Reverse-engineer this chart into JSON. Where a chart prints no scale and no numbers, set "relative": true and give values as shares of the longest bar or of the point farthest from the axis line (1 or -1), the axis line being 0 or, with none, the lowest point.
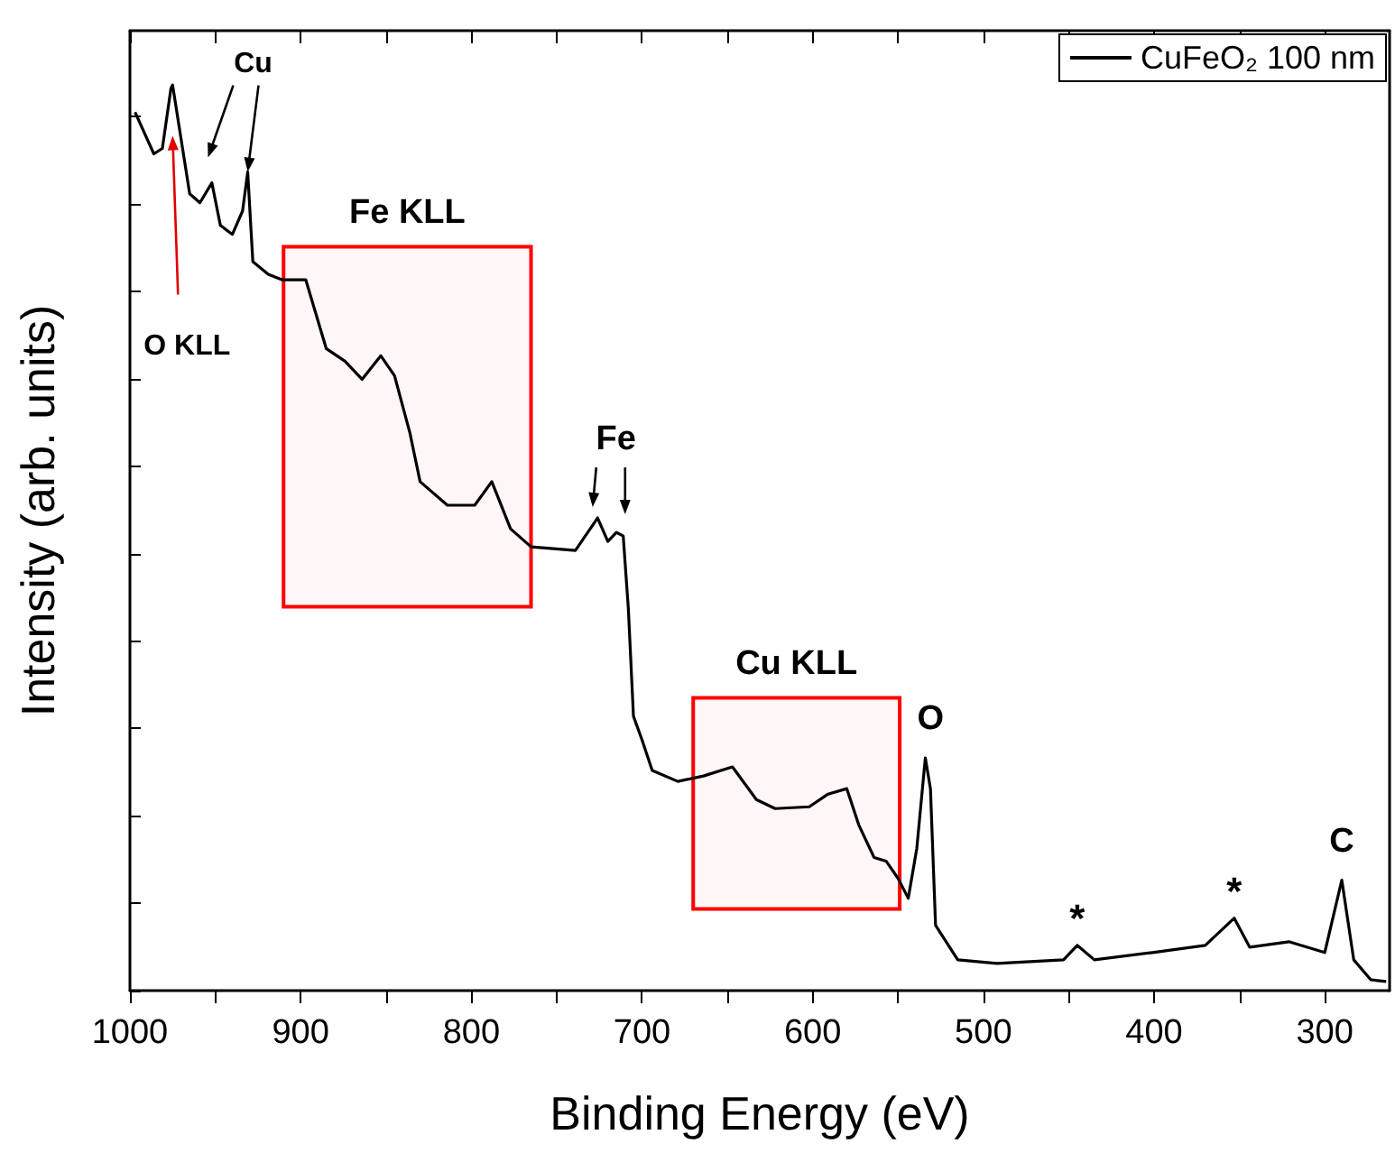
{
  "chart_data": {
    "type": "line",
    "xlabel": "Binding Energy (eV)",
    "ylabel": "Intensity (arb. units)",
    "relative": true,
    "tick_labels": "x",
    "legend": "top right",
    "grid": false,
    "marker": "none",
    "line_style": "solid",
    "xlim": [
      1000,
      262
    ],
    "xticks": [
      1000,
      900,
      800,
      700,
      600,
      500,
      400,
      300
    ],
    "series": [
      {
        "name": "CuFeO₂ 100 nm",
        "color": "#000000",
        "x": [
          997,
          986,
          981,
          976,
          975,
          970,
          965,
          959,
          952,
          947,
          940,
          934,
          931,
          928,
          919,
          911,
          897,
          885,
          874,
          864,
          853,
          845,
          836,
          830,
          814,
          798,
          788,
          777,
          765,
          739,
          726,
          720,
          715,
          711,
          708,
          705,
          700,
          694,
          679,
          664,
          647,
          633,
          622,
          602,
          591,
          580,
          573,
          564,
          557,
          550,
          544,
          539,
          534,
          531,
          528,
          515,
          492,
          453,
          445,
          435,
          401,
          370,
          353,
          344,
          321,
          300,
          290,
          283,
          273,
          264
        ],
        "values": [
          0.97,
          0.924,
          0.93,
          0.996,
          1.0,
          0.94,
          0.88,
          0.87,
          0.892,
          0.845,
          0.835,
          0.861,
          0.904,
          0.805,
          0.791,
          0.785,
          0.785,
          0.709,
          0.695,
          0.675,
          0.701,
          0.679,
          0.616,
          0.562,
          0.536,
          0.536,
          0.562,
          0.51,
          0.49,
          0.486,
          0.522,
          0.496,
          0.506,
          0.502,
          0.422,
          0.303,
          0.277,
          0.243,
          0.231,
          0.237,
          0.247,
          0.211,
          0.201,
          0.203,
          0.217,
          0.223,
          0.183,
          0.147,
          0.143,
          0.124,
          0.102,
          0.157,
          0.257,
          0.223,
          0.072,
          0.034,
          0.03,
          0.034,
          0.05,
          0.034,
          0.042,
          0.05,
          0.08,
          0.048,
          0.054,
          0.042,
          0.122,
          0.034,
          0.012,
          0.01
        ]
      }
    ],
    "bands": [
      {
        "axis": "x",
        "from": 910,
        "to": 765,
        "label": "Fe KLL",
        "color": "#ff0000"
      },
      {
        "axis": "x",
        "from": 670,
        "to": 549,
        "label": "Cu KLL",
        "color": "#ff0000"
      }
    ],
    "annotations": [
      {
        "text": "Cu",
        "x": 931,
        "y": 0.904
      },
      {
        "text": "O KLL",
        "x": 975,
        "y": 0.944
      },
      {
        "text": "Fe",
        "x": 712,
        "y": 0.506
      },
      {
        "text": "O",
        "x": 531,
        "y": 0.257
      },
      {
        "text": "*",
        "x": 445,
        "y": 0.05
      },
      {
        "text": "*",
        "x": 353,
        "y": 0.08
      },
      {
        "text": "C",
        "x": 290,
        "y": 0.122
      }
    ]
  }
}
